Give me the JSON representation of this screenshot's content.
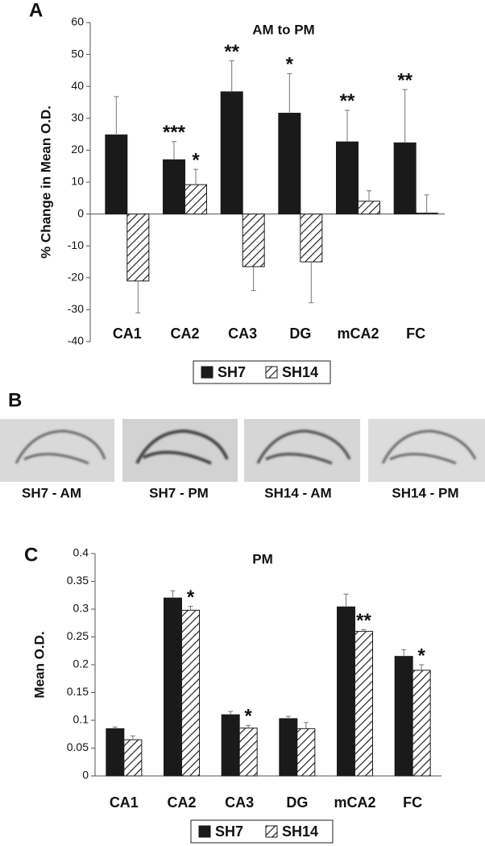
{
  "chart_data": [
    {
      "type": "bar",
      "panel": "A",
      "title": "AM to PM",
      "ylabel": "% Change in Mean O.D.",
      "categories": [
        "CA1",
        "CA2",
        "CA3",
        "DG",
        "mCA2",
        "FC"
      ],
      "series": [
        {
          "name": "SH7",
          "color": "#1a1a1a",
          "pattern": "solid",
          "values": [
            24.8,
            17,
            38.3,
            31.6,
            22.6,
            22.3
          ],
          "errors": [
            12,
            5.7,
            9.7,
            12.4,
            9.9,
            16.7
          ],
          "annotations": [
            null,
            "***",
            "**",
            "*",
            "**",
            "**"
          ]
        },
        {
          "name": "SH14",
          "color": "#1a1a1a",
          "pattern": "hatch",
          "values": [
            -21,
            9.2,
            -16.5,
            -15,
            4,
            0.3
          ],
          "errors": [
            10,
            4.8,
            7.5,
            12.8,
            3.3,
            5.7
          ],
          "annotations": [
            null,
            "*",
            null,
            null,
            null,
            null
          ]
        }
      ],
      "ylim": [
        -40,
        60
      ],
      "yticks": [
        -40,
        -30,
        -20,
        -10,
        0,
        10,
        20,
        30,
        40,
        50,
        60
      ],
      "grid": false
    },
    {
      "type": "bar",
      "panel": "C",
      "title": "PM",
      "ylabel": "Mean O.D.",
      "categories": [
        "CA1",
        "CA2",
        "CA3",
        "DG",
        "mCA2",
        "FC"
      ],
      "series": [
        {
          "name": "SH7",
          "color": "#1a1a1a",
          "pattern": "solid",
          "values": [
            0.085,
            0.32,
            0.11,
            0.103,
            0.304,
            0.215
          ],
          "errors": [
            0.003,
            0.013,
            0.006,
            0.004,
            0.023,
            0.012
          ],
          "annotations": [
            null,
            null,
            null,
            null,
            null,
            null
          ]
        },
        {
          "name": "SH14",
          "color": "#1a1a1a",
          "pattern": "hatch",
          "values": [
            0.065,
            0.298,
            0.086,
            0.085,
            0.26,
            0.19
          ],
          "errors": [
            0.007,
            0.007,
            0.005,
            0.011,
            0.003,
            0.01
          ],
          "annotations": [
            null,
            "*",
            "*",
            null,
            "**",
            "*"
          ]
        }
      ],
      "ylim": [
        0,
        0.4
      ],
      "yticks": [
        0,
        0.05,
        0.1,
        0.15,
        0.2,
        0.25,
        0.3,
        0.35,
        0.4
      ],
      "grid": false
    }
  ],
  "panel_b": {
    "panel": "B",
    "images": [
      {
        "label": "SH7 - AM"
      },
      {
        "label": "SH7 - PM"
      },
      {
        "label": "SH14 - AM"
      },
      {
        "label": "SH14 - PM"
      }
    ]
  }
}
